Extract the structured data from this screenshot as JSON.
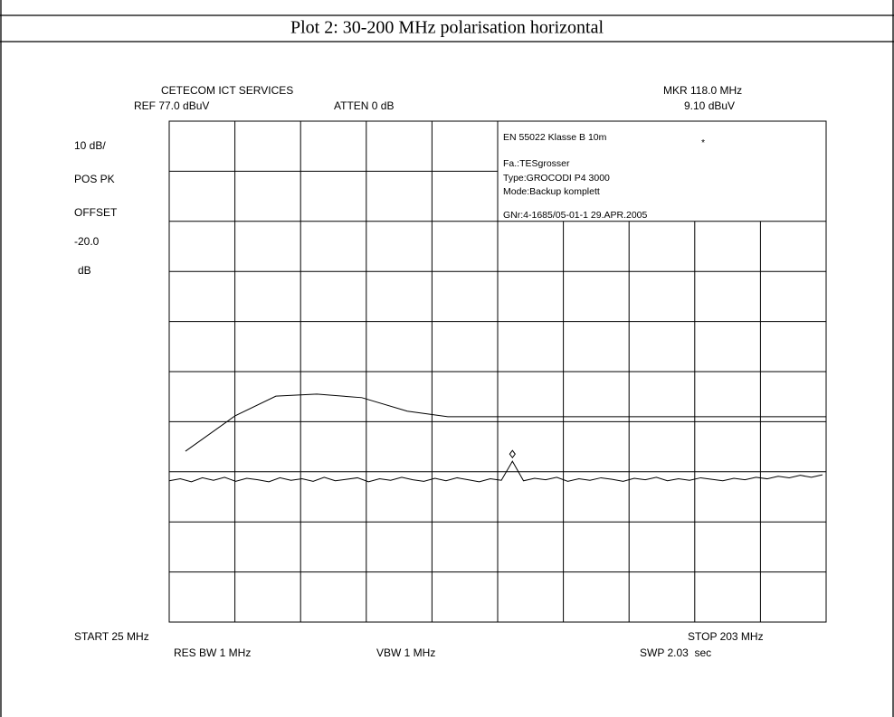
{
  "title": "Plot 2: 30-200 MHz polarisation horizontal",
  "chart_data": {
    "type": "line",
    "header_left": "CETECOM ICT SERVICES",
    "ref": "REF 77.0 dBuV",
    "atten": "ATTEN 0 dB",
    "marker_freq": "MKR 118.0 MHz",
    "marker_level": "9.10 dBuV",
    "side_labels": [
      "10 dB/",
      "POS PK",
      "OFFSET",
      "-20.0",
      "dB"
    ],
    "info": [
      "EN 55022 Klasse B 10m",
      "Fa.:TESgrosser",
      "Type:GROCODI P4 3000",
      "Mode:Backup komplett",
      "GNr:4-1685/05-01-1 29.APR.2005"
    ],
    "info_star": "*",
    "start": "START 25 MHz",
    "stop": "STOP 203 MHz",
    "res_bw": "RES BW 1 MHz",
    "vbw": "VBW 1 MHz",
    "swp": "SWP 2.03  sec",
    "xlim": [
      25,
      203
    ],
    "ylim": [
      -23,
      77
    ],
    "grid": true,
    "series": [
      {
        "color": "#000000",
        "x": [
          29.4,
          42.9,
          53.9,
          65.0,
          77.2,
          89.5,
          100.5,
          203
        ],
        "values": [
          11.1,
          18.2,
          22.1,
          22.5,
          21.8,
          19.1,
          18.0,
          18.0
        ]
      },
      {
        "color": "#000000",
        "x": [
          25,
          28,
          31,
          34,
          37,
          40,
          43,
          46,
          49,
          52,
          55,
          58,
          61,
          64,
          67,
          70,
          73,
          76,
          79,
          82,
          85,
          88,
          91,
          94,
          97,
          100,
          103,
          106,
          109,
          112,
          115,
          118,
          121,
          124,
          127,
          130,
          133,
          136,
          139,
          142,
          145,
          148,
          151,
          154,
          157,
          160,
          163,
          166,
          169,
          172,
          175,
          178,
          181,
          184,
          187,
          190,
          193,
          196,
          199,
          202
        ],
        "values": [
          5.2,
          5.6,
          5.0,
          5.8,
          5.3,
          5.9,
          5.1,
          5.7,
          5.4,
          5.0,
          5.8,
          5.3,
          5.6,
          5.1,
          5.9,
          5.2,
          5.5,
          5.8,
          5.0,
          5.6,
          5.3,
          5.9,
          5.4,
          5.1,
          5.7,
          5.2,
          5.8,
          5.4,
          5.0,
          5.6,
          5.3,
          9.1,
          5.2,
          5.7,
          5.4,
          5.9,
          5.1,
          5.6,
          5.3,
          5.8,
          5.5,
          5.1,
          5.7,
          5.4,
          5.9,
          5.2,
          5.6,
          5.3,
          5.8,
          5.5,
          5.2,
          5.7,
          5.4,
          5.9,
          5.6,
          6.1,
          5.8,
          6.3,
          5.9,
          6.4
        ]
      }
    ],
    "marker": {
      "x": 118,
      "y": 9.1
    }
  }
}
